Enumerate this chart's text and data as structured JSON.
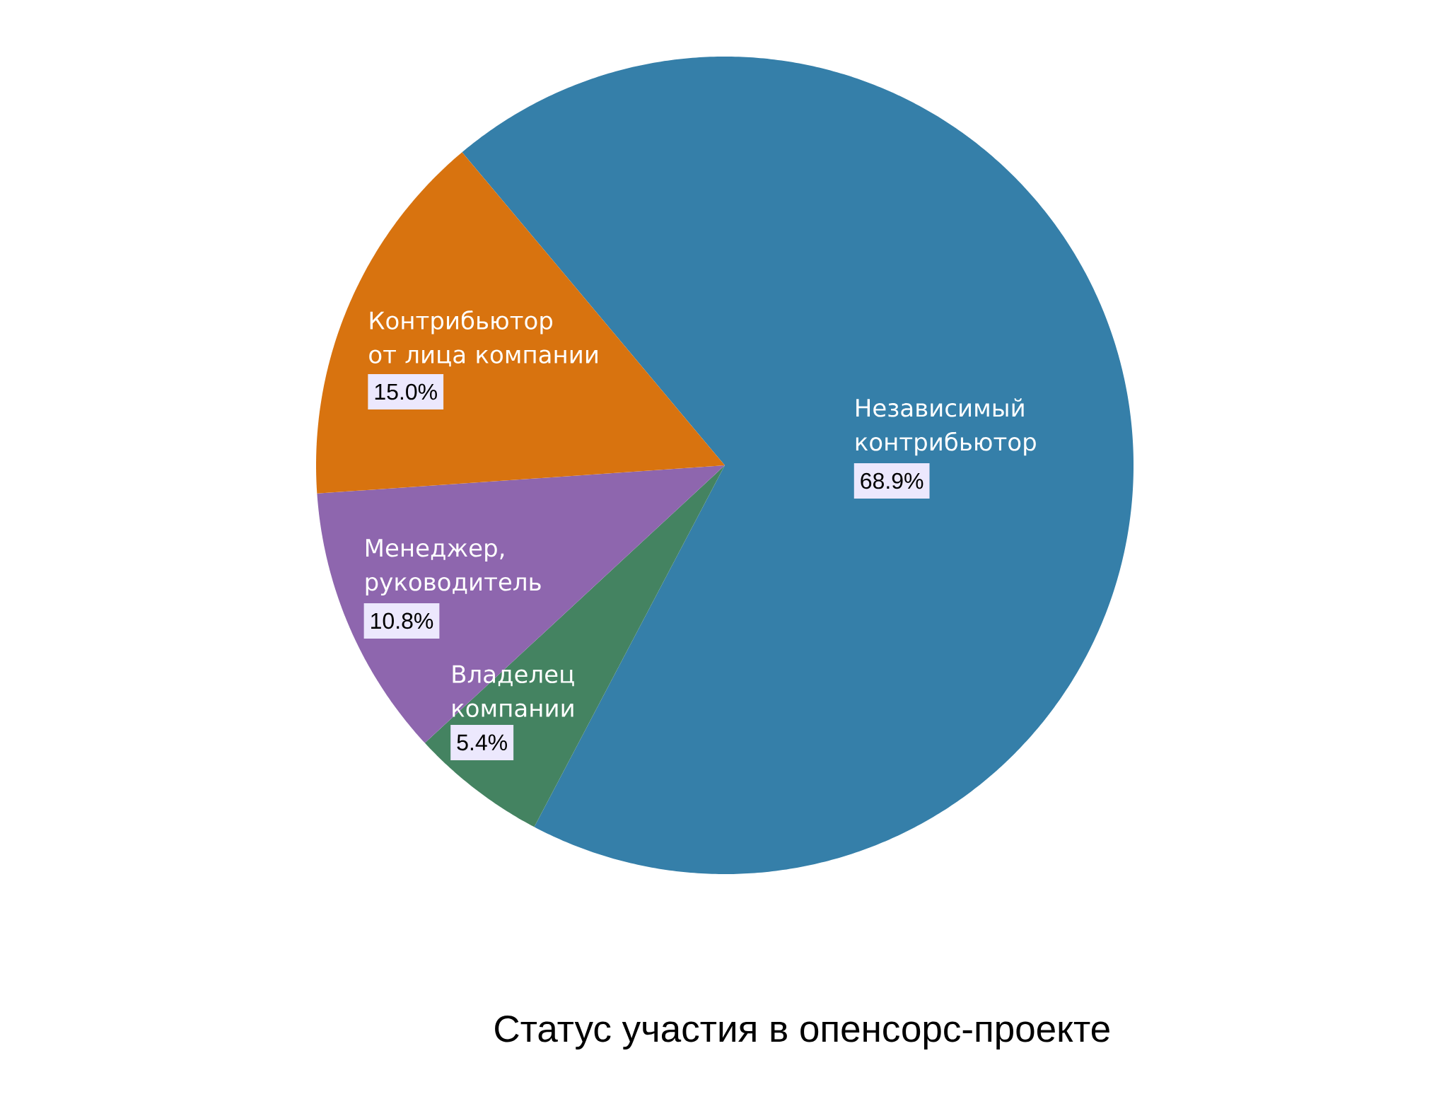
{
  "chart_data": {
    "type": "pie",
    "title": "Статус участия в опенсорс-проекте",
    "categories": [
      "Независимый контрибьютор",
      "Владелец компании",
      "Менеджер, руководитель",
      "Контрибьютор от лица компании"
    ],
    "values": [
      68.9,
      5.4,
      10.8,
      15.0
    ],
    "colors": [
      "#357fa9",
      "#448361",
      "#8e66ae",
      "#d8730f"
    ],
    "value_labels": [
      "68.9%",
      "5.4%",
      "10.8%",
      "15.0%"
    ]
  }
}
